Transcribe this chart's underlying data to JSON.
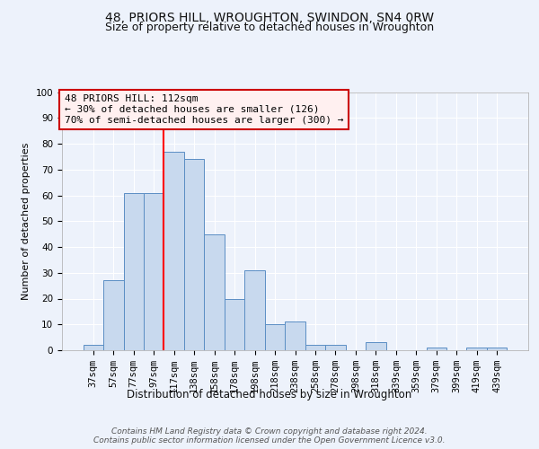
{
  "title1": "48, PRIORS HILL, WROUGHTON, SWINDON, SN4 0RW",
  "title2": "Size of property relative to detached houses in Wroughton",
  "xlabel": "Distribution of detached houses by size in Wroughton",
  "ylabel": "Number of detached properties",
  "bin_labels": [
    "37sqm",
    "57sqm",
    "77sqm",
    "97sqm",
    "117sqm",
    "138sqm",
    "158sqm",
    "178sqm",
    "198sqm",
    "218sqm",
    "238sqm",
    "258sqm",
    "278sqm",
    "298sqm",
    "318sqm",
    "339sqm",
    "359sqm",
    "379sqm",
    "399sqm",
    "419sqm",
    "439sqm"
  ],
  "bar_values": [
    2,
    27,
    61,
    61,
    77,
    74,
    45,
    20,
    31,
    10,
    11,
    2,
    2,
    0,
    3,
    0,
    0,
    1,
    0,
    1,
    1
  ],
  "bar_color": "#c8d9ee",
  "bar_edgecolor": "#5b8ec4",
  "vline_color": "red",
  "vline_x_index": 4,
  "annotation_text": "48 PRIORS HILL: 112sqm\n← 30% of detached houses are smaller (126)\n70% of semi-detached houses are larger (300) →",
  "annotation_box_facecolor": "#fff0f0",
  "annotation_box_edgecolor": "#cc0000",
  "ylim": [
    0,
    100
  ],
  "yticks": [
    0,
    10,
    20,
    30,
    40,
    50,
    60,
    70,
    80,
    90,
    100
  ],
  "footnote": "Contains HM Land Registry data © Crown copyright and database right 2024.\nContains public sector information licensed under the Open Government Licence v3.0.",
  "background_color": "#edf2fb",
  "grid_color": "#ffffff",
  "title1_fontsize": 10,
  "title2_fontsize": 9,
  "xlabel_fontsize": 8.5,
  "ylabel_fontsize": 8,
  "tick_fontsize": 7.5,
  "annotation_fontsize": 8,
  "footnote_fontsize": 6.5
}
